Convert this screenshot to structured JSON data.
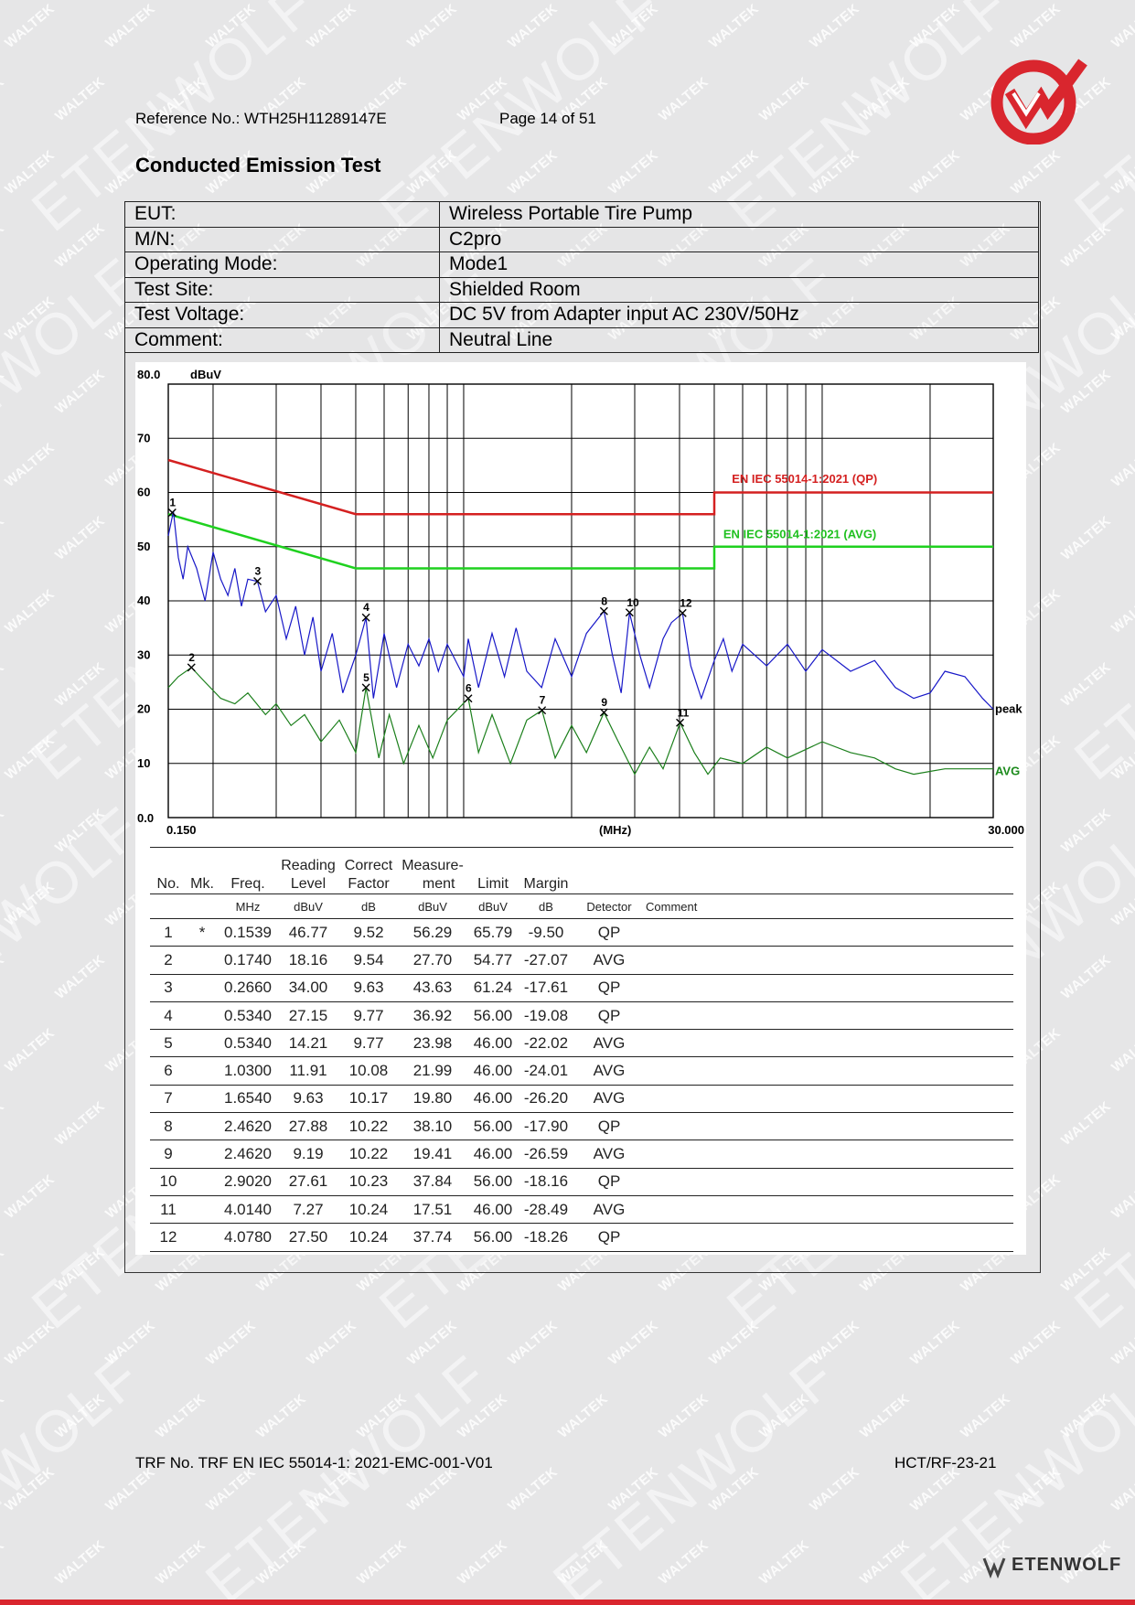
{
  "header": {
    "reference": "Reference No.: WTH25H11289147E",
    "page": "Page 14 of 51"
  },
  "section_title": "Conducted Emission Test",
  "info_rows": [
    {
      "key": "EUT:",
      "value": "Wireless Portable Tire Pump"
    },
    {
      "key": "M/N:",
      "value": "C2pro"
    },
    {
      "key": "Operating Mode:",
      "value": "Mode1"
    },
    {
      "key": "Test Site:",
      "value": "Shielded Room"
    },
    {
      "key": "Test Voltage:",
      "value": "DC 5V from Adapter input AC 230V/50Hz"
    },
    {
      "key": "Comment:",
      "value": "Neutral Line"
    }
  ],
  "chart_data": {
    "type": "line",
    "ylabel": "dBuV",
    "xlabel": "(MHz)",
    "x_scale": "log",
    "xlim": [
      0.15,
      30.0
    ],
    "ylim": [
      0,
      80
    ],
    "x_tick_labels": [
      "0.150",
      "30.000"
    ],
    "y_tick_labels": [
      "80.0",
      "70",
      "60",
      "50",
      "40",
      "30",
      "20",
      "10",
      "0.0"
    ],
    "grid": true,
    "limit_lines": [
      {
        "name": "EN IEC 55014-1:2021 (QP)",
        "color": "#d42020",
        "points": [
          [
            0.15,
            66
          ],
          [
            0.5,
            56
          ],
          [
            5.0,
            56
          ],
          [
            5.0,
            60
          ],
          [
            30.0,
            60
          ]
        ]
      },
      {
        "name": "EN IEC 55014-1:2021 (AVG)",
        "color": "#1fd11f",
        "points": [
          [
            0.15,
            56
          ],
          [
            0.5,
            46
          ],
          [
            5.0,
            46
          ],
          [
            5.0,
            50
          ],
          [
            30.0,
            50
          ]
        ]
      }
    ],
    "series": [
      {
        "name": "peak",
        "color": "#1818c8",
        "points": [
          [
            0.15,
            52
          ],
          [
            0.155,
            56.5
          ],
          [
            0.16,
            48
          ],
          [
            0.165,
            44
          ],
          [
            0.17,
            50
          ],
          [
            0.18,
            46
          ],
          [
            0.19,
            40
          ],
          [
            0.2,
            49
          ],
          [
            0.21,
            44
          ],
          [
            0.22,
            41
          ],
          [
            0.23,
            46
          ],
          [
            0.24,
            39
          ],
          [
            0.25,
            44
          ],
          [
            0.266,
            43.6
          ],
          [
            0.28,
            38
          ],
          [
            0.3,
            41
          ],
          [
            0.32,
            33
          ],
          [
            0.34,
            39
          ],
          [
            0.36,
            30
          ],
          [
            0.38,
            37
          ],
          [
            0.4,
            27
          ],
          [
            0.43,
            34
          ],
          [
            0.46,
            23
          ],
          [
            0.5,
            30
          ],
          [
            0.534,
            36.9
          ],
          [
            0.56,
            22
          ],
          [
            0.6,
            34
          ],
          [
            0.65,
            24
          ],
          [
            0.7,
            32
          ],
          [
            0.75,
            28
          ],
          [
            0.8,
            33
          ],
          [
            0.85,
            27
          ],
          [
            0.9,
            32
          ],
          [
            1.0,
            26
          ],
          [
            1.03,
            33
          ],
          [
            1.1,
            24
          ],
          [
            1.2,
            34
          ],
          [
            1.3,
            26
          ],
          [
            1.4,
            35
          ],
          [
            1.5,
            27
          ],
          [
            1.65,
            24
          ],
          [
            1.8,
            33
          ],
          [
            2.0,
            26
          ],
          [
            2.2,
            34
          ],
          [
            2.462,
            38.1
          ],
          [
            2.6,
            30
          ],
          [
            2.75,
            23
          ],
          [
            2.902,
            37.8
          ],
          [
            3.1,
            30
          ],
          [
            3.3,
            24
          ],
          [
            3.6,
            33
          ],
          [
            3.8,
            36
          ],
          [
            4.078,
            37.7
          ],
          [
            4.3,
            28
          ],
          [
            4.6,
            22
          ],
          [
            5.0,
            29
          ],
          [
            5.3,
            33
          ],
          [
            5.6,
            27
          ],
          [
            6.0,
            32
          ],
          [
            7.0,
            28
          ],
          [
            8.0,
            32
          ],
          [
            9.0,
            27
          ],
          [
            10.0,
            31
          ],
          [
            12.0,
            27
          ],
          [
            14.0,
            29
          ],
          [
            16.0,
            24
          ],
          [
            18.0,
            22
          ],
          [
            20.0,
            23
          ],
          [
            22.0,
            27
          ],
          [
            25.0,
            26
          ],
          [
            28.0,
            22
          ],
          [
            30.0,
            20
          ]
        ]
      },
      {
        "name": "AVG",
        "color": "#1b7f1b",
        "points": [
          [
            0.15,
            24
          ],
          [
            0.16,
            26
          ],
          [
            0.174,
            27.7
          ],
          [
            0.19,
            25
          ],
          [
            0.21,
            22
          ],
          [
            0.23,
            21
          ],
          [
            0.25,
            23
          ],
          [
            0.28,
            19
          ],
          [
            0.3,
            21
          ],
          [
            0.33,
            17
          ],
          [
            0.36,
            19
          ],
          [
            0.4,
            14
          ],
          [
            0.45,
            18
          ],
          [
            0.5,
            12
          ],
          [
            0.534,
            24.0
          ],
          [
            0.58,
            11
          ],
          [
            0.62,
            19
          ],
          [
            0.68,
            10
          ],
          [
            0.75,
            17
          ],
          [
            0.82,
            11
          ],
          [
            0.9,
            18
          ],
          [
            1.03,
            22.0
          ],
          [
            1.1,
            12
          ],
          [
            1.2,
            19
          ],
          [
            1.35,
            10
          ],
          [
            1.5,
            18
          ],
          [
            1.654,
            19.8
          ],
          [
            1.8,
            11
          ],
          [
            2.0,
            17
          ],
          [
            2.2,
            12
          ],
          [
            2.462,
            19.4
          ],
          [
            2.7,
            14
          ],
          [
            3.0,
            8
          ],
          [
            3.3,
            13
          ],
          [
            3.6,
            9
          ],
          [
            4.014,
            17.5
          ],
          [
            4.4,
            12
          ],
          [
            4.8,
            8
          ],
          [
            5.2,
            11
          ],
          [
            6.0,
            10
          ],
          [
            7.0,
            13
          ],
          [
            8.0,
            11
          ],
          [
            10.0,
            14
          ],
          [
            12.0,
            12
          ],
          [
            14.0,
            11
          ],
          [
            16.0,
            9
          ],
          [
            18.0,
            8
          ],
          [
            22.0,
            9
          ],
          [
            26.0,
            9
          ],
          [
            30.0,
            9
          ]
        ]
      }
    ],
    "markers": [
      {
        "no": "1",
        "freq": 0.1539,
        "level": 56.29
      },
      {
        "no": "2",
        "freq": 0.174,
        "level": 27.7
      },
      {
        "no": "3",
        "freq": 0.266,
        "level": 43.63
      },
      {
        "no": "4",
        "freq": 0.534,
        "level": 36.92
      },
      {
        "no": "5",
        "freq": 0.534,
        "level": 23.98
      },
      {
        "no": "6",
        "freq": 1.03,
        "level": 21.99
      },
      {
        "no": "7",
        "freq": 1.654,
        "level": 19.8
      },
      {
        "no": "8",
        "freq": 2.462,
        "level": 38.1
      },
      {
        "no": "9",
        "freq": 2.462,
        "level": 19.41
      },
      {
        "no": "10",
        "freq": 2.902,
        "level": 37.84
      },
      {
        "no": "11",
        "freq": 4.014,
        "level": 17.51
      },
      {
        "no": "12",
        "freq": 4.078,
        "level": 37.74
      }
    ]
  },
  "measurements": {
    "headers": {
      "no": "No.",
      "mk": "Mk.",
      "freq": "Freq.",
      "reading": "Reading Level",
      "correct": "Correct Factor",
      "measurement": "Measure- ment",
      "limit": "Limit",
      "margin": "Margin",
      "detector": "",
      "comment": ""
    },
    "units": {
      "no": "",
      "mk": "",
      "freq": "MHz",
      "reading": "dBuV",
      "correct": "dB",
      "measurement": "dBuV",
      "limit": "dBuV",
      "margin": "dB",
      "detector": "Detector",
      "comment": "Comment"
    },
    "rows": [
      {
        "no": "1",
        "mk": "*",
        "freq": "0.1539",
        "reading": "46.77",
        "correct": "9.52",
        "measurement": "56.29",
        "limit": "65.79",
        "margin": "-9.50",
        "detector": "QP"
      },
      {
        "no": "2",
        "mk": "",
        "freq": "0.1740",
        "reading": "18.16",
        "correct": "9.54",
        "measurement": "27.70",
        "limit": "54.77",
        "margin": "-27.07",
        "detector": "AVG"
      },
      {
        "no": "3",
        "mk": "",
        "freq": "0.2660",
        "reading": "34.00",
        "correct": "9.63",
        "measurement": "43.63",
        "limit": "61.24",
        "margin": "-17.61",
        "detector": "QP"
      },
      {
        "no": "4",
        "mk": "",
        "freq": "0.5340",
        "reading": "27.15",
        "correct": "9.77",
        "measurement": "36.92",
        "limit": "56.00",
        "margin": "-19.08",
        "detector": "QP"
      },
      {
        "no": "5",
        "mk": "",
        "freq": "0.5340",
        "reading": "14.21",
        "correct": "9.77",
        "measurement": "23.98",
        "limit": "46.00",
        "margin": "-22.02",
        "detector": "AVG"
      },
      {
        "no": "6",
        "mk": "",
        "freq": "1.0300",
        "reading": "11.91",
        "correct": "10.08",
        "measurement": "21.99",
        "limit": "46.00",
        "margin": "-24.01",
        "detector": "AVG"
      },
      {
        "no": "7",
        "mk": "",
        "freq": "1.6540",
        "reading": "9.63",
        "correct": "10.17",
        "measurement": "19.80",
        "limit": "46.00",
        "margin": "-26.20",
        "detector": "AVG"
      },
      {
        "no": "8",
        "mk": "",
        "freq": "2.4620",
        "reading": "27.88",
        "correct": "10.22",
        "measurement": "38.10",
        "limit": "56.00",
        "margin": "-17.90",
        "detector": "QP"
      },
      {
        "no": "9",
        "mk": "",
        "freq": "2.4620",
        "reading": "9.19",
        "correct": "10.22",
        "measurement": "19.41",
        "limit": "46.00",
        "margin": "-26.59",
        "detector": "AVG"
      },
      {
        "no": "10",
        "mk": "",
        "freq": "2.9020",
        "reading": "27.61",
        "correct": "10.23",
        "measurement": "37.84",
        "limit": "56.00",
        "margin": "-18.16",
        "detector": "QP"
      },
      {
        "no": "11",
        "mk": "",
        "freq": "4.0140",
        "reading": "7.27",
        "correct": "10.24",
        "measurement": "17.51",
        "limit": "46.00",
        "margin": "-28.49",
        "detector": "AVG"
      },
      {
        "no": "12",
        "mk": "",
        "freq": "4.0780",
        "reading": "27.50",
        "correct": "10.24",
        "measurement": "37.74",
        "limit": "56.00",
        "margin": "-18.26",
        "detector": "QP"
      }
    ]
  },
  "footer": {
    "trf": "TRF No. TRF EN IEC 55014-1: 2021-EMC-001-V01",
    "code": "HCT/RF-23-21"
  },
  "watermark": {
    "small": "WALTEK",
    "big": "ETENWOLF"
  },
  "brand": "ETENWOLF",
  "colors": {
    "accent": "#d9262e",
    "qp_limit": "#d42020",
    "avg_limit": "#1fd11f",
    "peak_trace": "#1818c8",
    "avg_trace": "#1b7f1b"
  }
}
